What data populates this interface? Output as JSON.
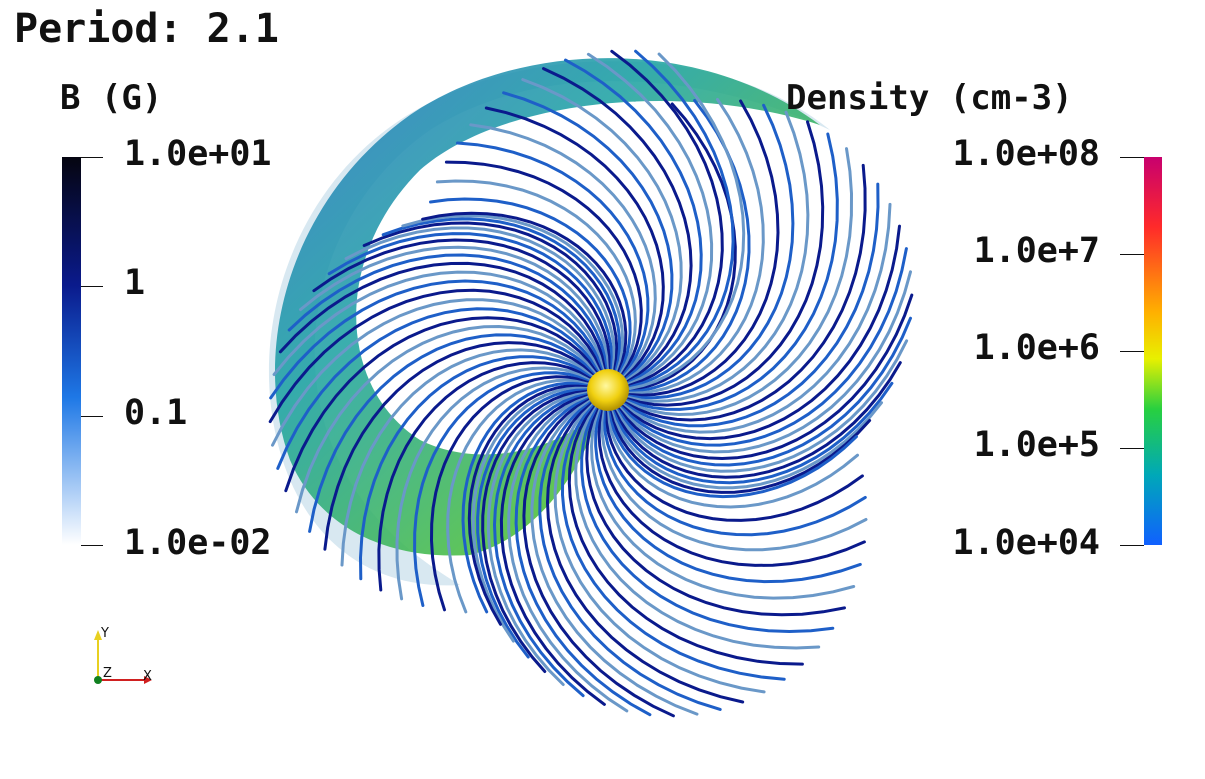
{
  "title": "Period: 2.1",
  "left_colorbar": {
    "title": "B (G)",
    "ticks": [
      "1.0e+01",
      "1",
      "0.1",
      "1.0e-02"
    ],
    "colors": [
      "#050510",
      "#0a1a8c",
      "#1e78e6",
      "#ffffff"
    ]
  },
  "right_colorbar": {
    "title": "Density (cm-3)",
    "ticks": [
      "1.0e+08",
      "1.0e+7",
      "1.0e+6",
      "1.0e+5",
      "1.0e+04"
    ],
    "colors": [
      "#c8006e",
      "#ff2a2a",
      "#ffb000",
      "#e8f000",
      "#28d040",
      "#00a8b8",
      "#1060ff"
    ]
  },
  "axes_triad": {
    "y": "Y",
    "z": "Z",
    "x": "X"
  }
}
